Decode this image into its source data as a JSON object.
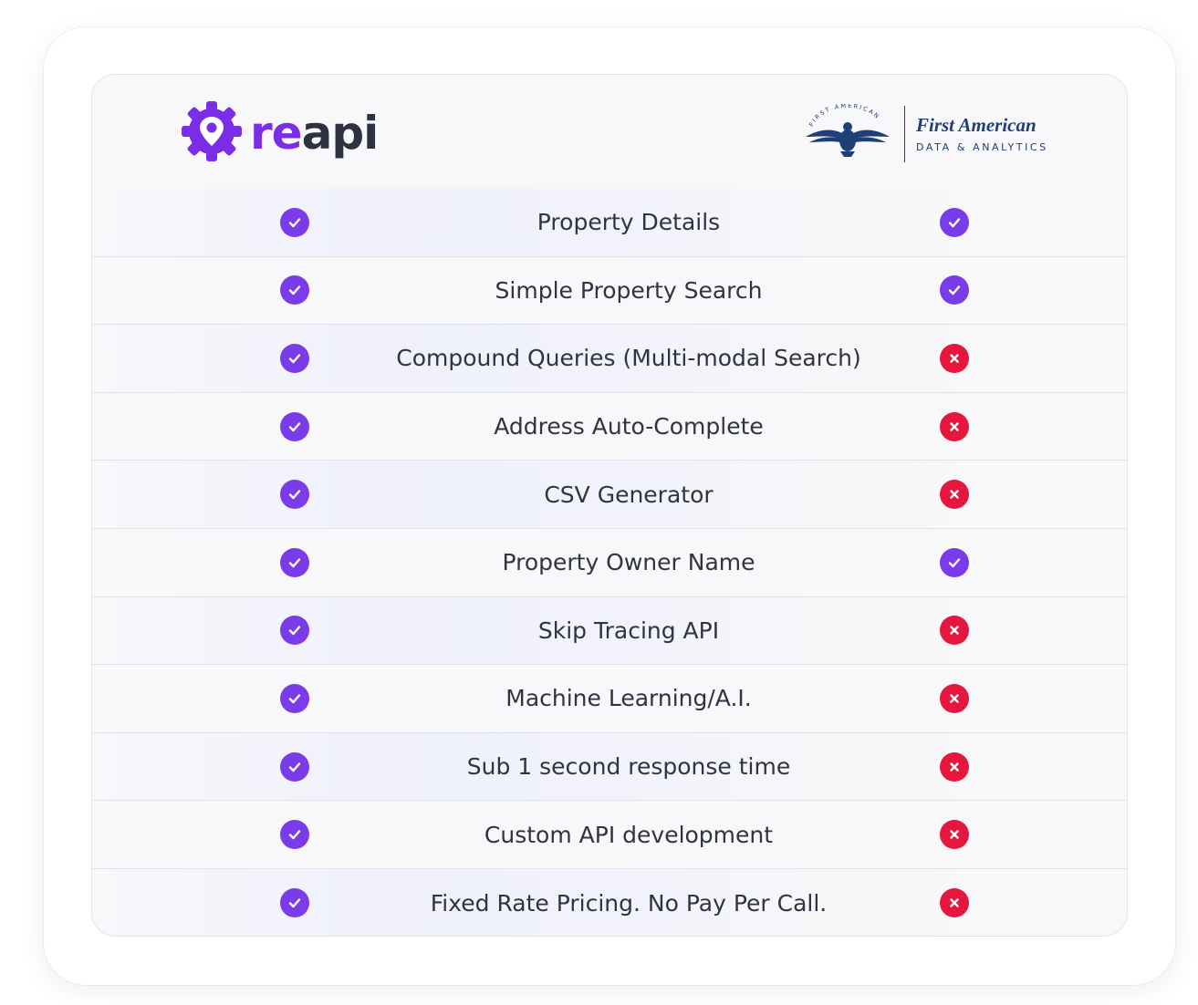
{
  "brands": {
    "left": {
      "logo_part1": "re",
      "logo_part2": "api",
      "accent_color": "#7a2ee8",
      "icon": "location-pin-gear-icon"
    },
    "right": {
      "name": "First American",
      "subtitle": "DATA & ANALYTICS",
      "seal_text": "FIRST AMERICAN",
      "icon": "eagle-seal-icon",
      "accent_color": "#1f3f78"
    }
  },
  "colors": {
    "yes": "#7a3be8",
    "no": "#e5173f"
  },
  "rows": [
    {
      "feature": "Property Details",
      "reapi": "yes",
      "first_american": "yes"
    },
    {
      "feature": "Simple Property Search",
      "reapi": "yes",
      "first_american": "yes"
    },
    {
      "feature": "Compound Queries (Multi-modal Search)",
      "reapi": "yes",
      "first_american": "no"
    },
    {
      "feature": "Address Auto-Complete",
      "reapi": "yes",
      "first_american": "no"
    },
    {
      "feature": "CSV Generator",
      "reapi": "yes",
      "first_american": "no"
    },
    {
      "feature": "Property Owner Name",
      "reapi": "yes",
      "first_american": "yes"
    },
    {
      "feature": "Skip Tracing API",
      "reapi": "yes",
      "first_american": "no"
    },
    {
      "feature": "Machine Learning/A.I.",
      "reapi": "yes",
      "first_american": "no"
    },
    {
      "feature": "Sub 1 second response time",
      "reapi": "yes",
      "first_american": "no"
    },
    {
      "feature": "Custom API development",
      "reapi": "yes",
      "first_american": "no"
    },
    {
      "feature": "Fixed Rate Pricing. No Pay Per Call.",
      "reapi": "yes",
      "first_american": "no"
    }
  ]
}
